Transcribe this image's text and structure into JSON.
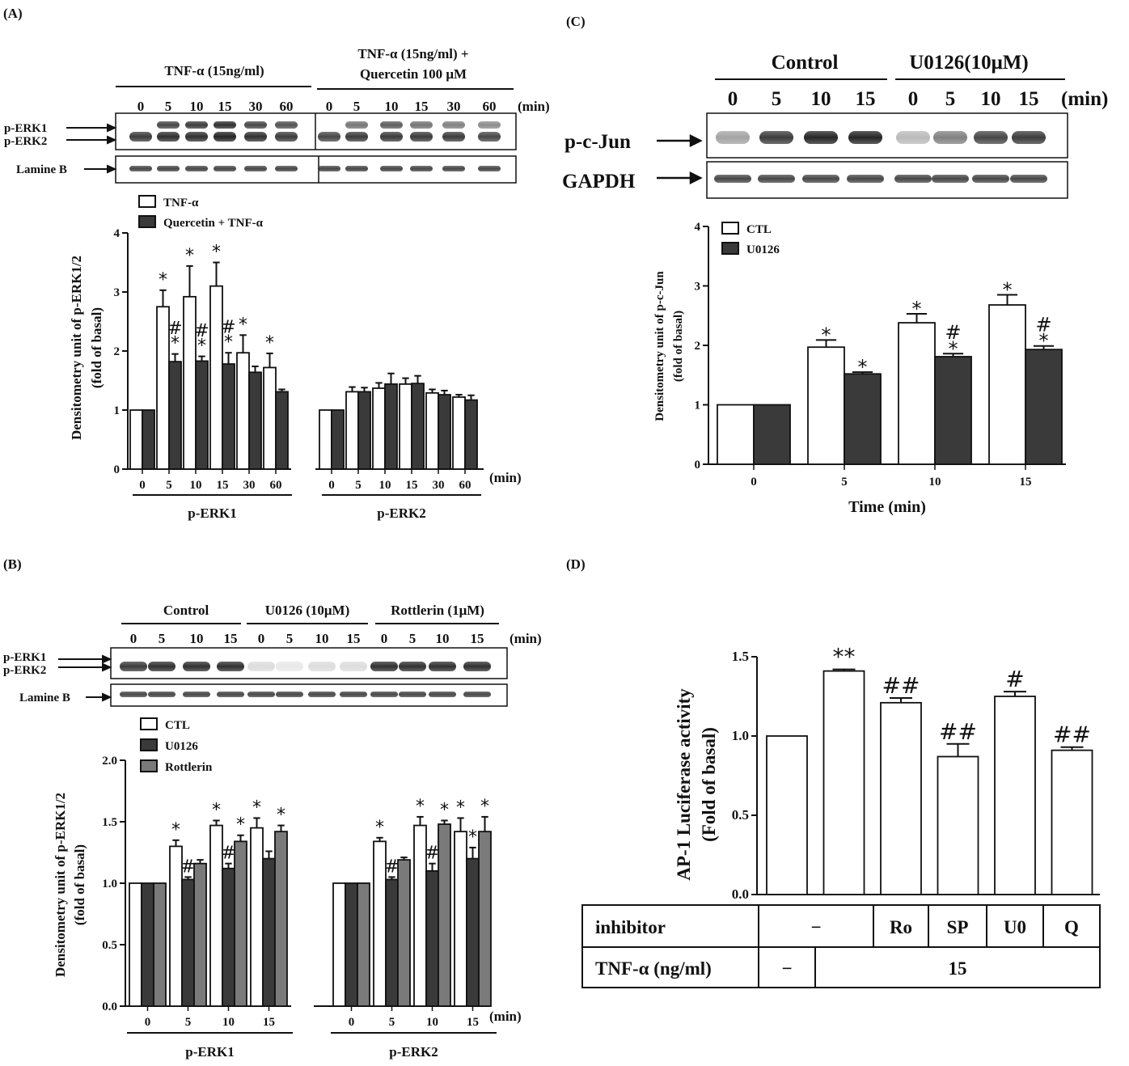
{
  "colors": {
    "white": "#ffffff",
    "dark": "#3a3a3a",
    "gray": "#7a7a7a",
    "ink": "#111111"
  },
  "panelA": {
    "label": "(A)",
    "blot": {
      "group1": "TNF-α (15ng/ml)",
      "group2_line1": "TNF-α (15ng/ml) +",
      "group2_line2": "Quercetin 100 μM",
      "times": [
        "0",
        "5",
        "10",
        "15",
        "30",
        "60"
      ],
      "unit": "(min)",
      "row1_label1": "p-ERK1",
      "row1_label2": "p-ERK2",
      "row2_label": "Lamine B"
    },
    "chart_data": {
      "type": "bar",
      "ylabel_line1": "Densitometry unit of p-ERK1/2",
      "ylabel_line2": "(fold of basal)",
      "ylim": [
        0,
        4
      ],
      "yticks": [
        "0",
        "1",
        "2",
        "3",
        "4"
      ],
      "xunit": "(min)",
      "legend": [
        "TNF-α",
        "Quercetin + TNF-α"
      ],
      "groups": [
        {
          "name": "p-ERK1",
          "categories": [
            "0",
            "5",
            "10",
            "15",
            "30",
            "60"
          ],
          "series": [
            {
              "name": "TNF-α",
              "values": [
                1.0,
                2.75,
                2.92,
                3.1,
                1.97,
                1.72
              ],
              "err": [
                0,
                0.28,
                0.52,
                0.4,
                0.3,
                0.24
              ],
              "marks": [
                "",
                "*",
                "*",
                "*",
                "*",
                "*"
              ]
            },
            {
              "name": "Quercetin + TNF-α",
              "values": [
                1.0,
                1.82,
                1.83,
                1.78,
                1.64,
                1.31
              ],
              "err": [
                0,
                0.13,
                0.08,
                0.19,
                0.1,
                0.04
              ],
              "marks": [
                "",
                "#\n*",
                "#\n*",
                "#\n*",
                "",
                ""
              ]
            }
          ]
        },
        {
          "name": "p-ERK2",
          "categories": [
            "0",
            "5",
            "10",
            "15",
            "30",
            "60"
          ],
          "series": [
            {
              "name": "TNF-α",
              "values": [
                1.0,
                1.31,
                1.37,
                1.44,
                1.29,
                1.22
              ],
              "err": [
                0,
                0.08,
                0.09,
                0.1,
                0.06,
                0.04
              ],
              "marks": [
                "",
                "",
                "",
                "",
                "",
                ""
              ]
            },
            {
              "name": "Quercetin + TNF-α",
              "values": [
                1.0,
                1.31,
                1.44,
                1.45,
                1.26,
                1.17
              ],
              "err": [
                0,
                0.07,
                0.18,
                0.13,
                0.07,
                0.08
              ],
              "marks": [
                "",
                "",
                "",
                "",
                "",
                ""
              ]
            }
          ]
        }
      ]
    }
  },
  "panelB": {
    "label": "(B)",
    "blot": {
      "group1": "Control",
      "group2": "U0126 (10μM)",
      "group3": "Rottlerin (1μM)",
      "times": [
        "0",
        "5",
        "10",
        "15"
      ],
      "unit": "(min)",
      "row1_label1": "p-ERK1",
      "row1_label2": "p-ERK2",
      "row2_label": "Lamine B"
    },
    "chart_data": {
      "type": "bar",
      "ylabel_line1": "Densitometry unit of p-ERK1/2",
      "ylabel_line2": "(fold of basal)",
      "ylim": [
        0,
        2.0
      ],
      "yticks": [
        "0.0",
        "0.5",
        "1.0",
        "1.5",
        "2.0"
      ],
      "xunit": "(min)",
      "legend": [
        "CTL",
        "U0126",
        "Rottlerin"
      ],
      "groups": [
        {
          "name": "p-ERK1",
          "categories": [
            "0",
            "5",
            "10",
            "15"
          ],
          "series": [
            {
              "name": "CTL",
              "values": [
                1.0,
                1.3,
                1.47,
                1.45
              ],
              "err": [
                0,
                0.05,
                0.04,
                0.08
              ],
              "marks": [
                "",
                "*",
                "*",
                "*"
              ]
            },
            {
              "name": "U0126",
              "values": [
                1.0,
                1.03,
                1.12,
                1.2
              ],
              "err": [
                0,
                0.02,
                0.04,
                0.06
              ],
              "marks": [
                "",
                "#",
                "#",
                ""
              ]
            },
            {
              "name": "Rottlerin",
              "values": [
                1.0,
                1.16,
                1.34,
                1.42
              ],
              "err": [
                0,
                0.03,
                0.05,
                0.05
              ],
              "marks": [
                "",
                "",
                "*",
                "*"
              ]
            }
          ]
        },
        {
          "name": "p-ERK2",
          "categories": [
            "0",
            "5",
            "10",
            "15"
          ],
          "series": [
            {
              "name": "CTL",
              "values": [
                1.0,
                1.34,
                1.47,
                1.42
              ],
              "err": [
                0,
                0.03,
                0.07,
                0.11
              ],
              "marks": [
                "",
                "*",
                "*",
                "*"
              ]
            },
            {
              "name": "U0126",
              "values": [
                1.0,
                1.03,
                1.1,
                1.2
              ],
              "err": [
                0,
                0.02,
                0.06,
                0.09
              ],
              "marks": [
                "",
                "#",
                "#",
                "*"
              ]
            },
            {
              "name": "Rottlerin",
              "values": [
                1.0,
                1.19,
                1.48,
                1.42
              ],
              "err": [
                0,
                0.02,
                0.03,
                0.12
              ],
              "marks": [
                "",
                "",
                "*",
                "*"
              ]
            }
          ]
        }
      ]
    }
  },
  "panelC": {
    "label": "(C)",
    "blot": {
      "group1": "Control",
      "group2": "U0126(10μM)",
      "times": [
        "0",
        "5",
        "10",
        "15"
      ],
      "unit": "(min)",
      "row1_label": "p-c-Jun",
      "row2_label": "GAPDH"
    },
    "chart_data": {
      "type": "bar",
      "ylabel_line1": "Densitometry unit of p-c-Jun",
      "ylabel_line2": "(fold of basal)",
      "xlabel": "Time (min)",
      "ylim": [
        0,
        4
      ],
      "yticks": [
        "0",
        "1",
        "2",
        "3",
        "4"
      ],
      "legend": [
        "CTL",
        "U0126"
      ],
      "categories": [
        "0",
        "5",
        "10",
        "15"
      ],
      "series": [
        {
          "name": "CTL",
          "values": [
            1.0,
            1.97,
            2.38,
            2.68
          ],
          "err": [
            0,
            0.12,
            0.15,
            0.17
          ],
          "marks": [
            "",
            "*",
            "*",
            "*"
          ]
        },
        {
          "name": "U0126",
          "values": [
            1.0,
            1.52,
            1.81,
            1.93
          ],
          "err": [
            0,
            0.03,
            0.05,
            0.06
          ],
          "marks": [
            "",
            "*",
            "#\n*",
            "#\n*"
          ]
        }
      ]
    }
  },
  "panelD": {
    "label": "(D)",
    "chart_data": {
      "type": "bar",
      "ylabel_line1": "AP-1 Luciferase activity",
      "ylabel_line2": "(Fold of basal)",
      "ylim": [
        0,
        1.5
      ],
      "yticks": [
        "0.0",
        "0.5",
        "1.0",
        "1.5"
      ],
      "values": [
        1.0,
        1.41,
        1.21,
        0.87,
        1.25,
        0.91
      ],
      "err": [
        0,
        0.01,
        0.03,
        0.08,
        0.03,
        0.02
      ],
      "marks": [
        "",
        "**",
        "##",
        "##",
        "#",
        "##"
      ]
    },
    "table": {
      "row1_label": "inhibitor",
      "row1_cells": [
        "−",
        "Ro",
        "SP",
        "U0",
        "Q"
      ],
      "row2_label": "TNF-α (ng/ml)",
      "row2_cells": [
        "−",
        "15"
      ]
    }
  }
}
